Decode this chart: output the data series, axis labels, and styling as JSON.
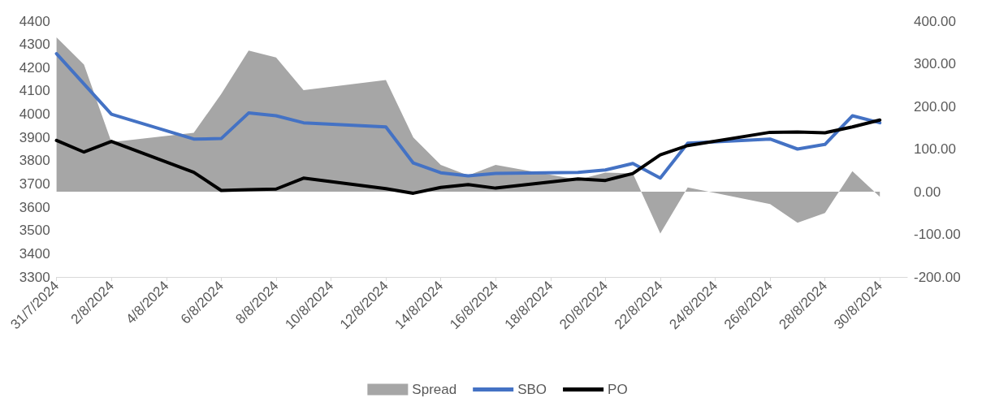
{
  "chart_data": {
    "type": "line",
    "x": [
      "2024-07-31",
      "2024-08-01",
      "2024-08-02",
      "2024-08-05",
      "2024-08-06",
      "2024-08-07",
      "2024-08-08",
      "2024-08-09",
      "2024-08-12",
      "2024-08-13",
      "2024-08-14",
      "2024-08-15",
      "2024-08-16",
      "2024-08-19",
      "2024-08-20",
      "2024-08-21",
      "2024-08-22",
      "2024-08-23",
      "2024-08-26",
      "2024-08-27",
      "2024-08-28",
      "2024-08-29",
      "2024-08-30"
    ],
    "series": [
      {
        "name": "Spread",
        "type": "area",
        "axis": "y2",
        "color": "#a6a6a6",
        "values": [
          362,
          298,
          116,
          138,
          229,
          331,
          315,
          238,
          262,
          127,
          63,
          38,
          63,
          28,
          45,
          43,
          -98,
          10,
          -29,
          -73,
          -50,
          48,
          -12
        ]
      },
      {
        "name": "SBO",
        "color": "#4472c4",
        "values": [
          4260,
          4130,
          4000,
          3893,
          3895,
          4005,
          3993,
          3963,
          3945,
          3790,
          3748,
          3735,
          3745,
          3750,
          3760,
          3788,
          3725,
          3875,
          3893,
          3850,
          3870,
          3993,
          3963
        ]
      },
      {
        "name": "PO",
        "color": "#000000",
        "values": [
          3887,
          3837,
          3883,
          3750,
          3672,
          3675,
          3678,
          3725,
          3680,
          3660,
          3685,
          3697,
          3682,
          3722,
          3715,
          3745,
          3825,
          3865,
          3922,
          3923,
          3920,
          3945,
          3975
        ]
      }
    ],
    "xlim": [
      "2024-07-31",
      "2024-08-31"
    ],
    "xticks": [
      {
        "value": "2024-07-31",
        "label": "31/7/2024"
      },
      {
        "value": "2024-08-02",
        "label": "2/8/2024"
      },
      {
        "value": "2024-08-04",
        "label": "4/8/2024"
      },
      {
        "value": "2024-08-06",
        "label": "6/8/2024"
      },
      {
        "value": "2024-08-08",
        "label": "8/8/2024"
      },
      {
        "value": "2024-08-10",
        "label": "10/8/2024"
      },
      {
        "value": "2024-08-12",
        "label": "12/8/2024"
      },
      {
        "value": "2024-08-14",
        "label": "14/8/2024"
      },
      {
        "value": "2024-08-16",
        "label": "16/8/2024"
      },
      {
        "value": "2024-08-18",
        "label": "18/8/2024"
      },
      {
        "value": "2024-08-20",
        "label": "20/8/2024"
      },
      {
        "value": "2024-08-22",
        "label": "22/8/2024"
      },
      {
        "value": "2024-08-24",
        "label": "24/8/2024"
      },
      {
        "value": "2024-08-26",
        "label": "26/8/2024"
      },
      {
        "value": "2024-08-28",
        "label": "28/8/2024"
      },
      {
        "value": "2024-08-30",
        "label": "30/8/2024"
      }
    ],
    "ylim": [
      3300,
      4400
    ],
    "yticks": [
      3300,
      3400,
      3500,
      3600,
      3700,
      3800,
      3900,
      4000,
      4100,
      4200,
      4300,
      4400
    ],
    "y2lim": [
      -200,
      400
    ],
    "y2ticks": [
      {
        "value": -200,
        "label": "-200.00"
      },
      {
        "value": -100,
        "label": "-100.00"
      },
      {
        "value": 0,
        "label": "0.00"
      },
      {
        "value": 100,
        "label": "100.00"
      },
      {
        "value": 200,
        "label": "200.00"
      },
      {
        "value": 300,
        "label": "300.00"
      },
      {
        "value": 400,
        "label": "400.00"
      }
    ],
    "grid": false,
    "legend": "bottom",
    "marker": "none",
    "line_style": "solid"
  }
}
